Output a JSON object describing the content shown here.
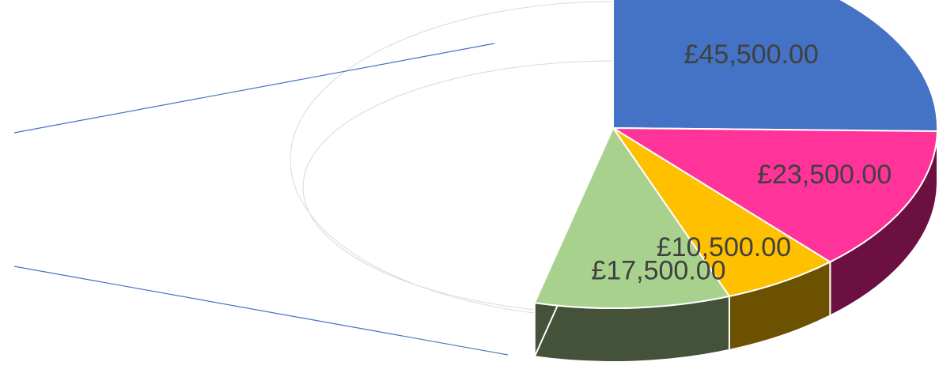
{
  "chart_data": {
    "type": "pie",
    "variant": "3d-exploded-pie-of-pie",
    "slices": [
      {
        "value": 45500,
        "label": "£45,500.00",
        "color": "#4472C4",
        "side_color": "#2F528F"
      },
      {
        "value": 23500,
        "label": "£23,500.00",
        "color": "#FF3399",
        "side_color": "#6B1040"
      },
      {
        "value": 10500,
        "label": "£10,500.00",
        "color": "#FFC000",
        "side_color": "#6B5100"
      },
      {
        "value": 17500,
        "label": "£17,500.00",
        "color": "#A9D18E",
        "side_color": "#435239"
      }
    ],
    "hidden_remainder_outline": true,
    "connector_line_color": "#4472C4",
    "label_color": "#404040",
    "legend": "none"
  }
}
